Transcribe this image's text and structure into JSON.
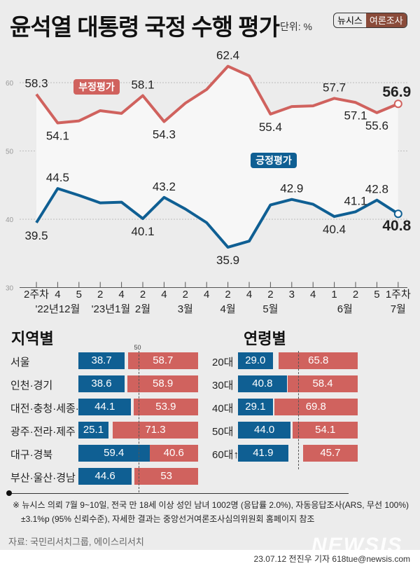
{
  "header": {
    "title": "윤석열 대통령 국정 수행 평가",
    "unit": "단위: %",
    "badge_left": "뉴시스",
    "badge_right": "여론조사"
  },
  "chart_data": [
    {
      "type": "line",
      "ylim": [
        30,
        65
      ],
      "yticks": [
        "30",
        "40",
        "50",
        "60"
      ],
      "grid": true,
      "x_top": [
        "2주차",
        "4",
        "5",
        "2",
        "4",
        "2",
        "4",
        "2",
        "4",
        "2",
        "4",
        "2",
        "3",
        "4",
        "1",
        "2",
        "5",
        "1주차"
      ],
      "x_bottom": [
        {
          "label": "'22년12월",
          "at": 1
        },
        {
          "label": "'23년1월",
          "at": 3.5
        },
        {
          "label": "2월",
          "at": 5
        },
        {
          "label": "3월",
          "at": 7
        },
        {
          "label": "4월",
          "at": 9
        },
        {
          "label": "5월",
          "at": 11
        },
        {
          "label": "6월",
          "at": 14.5
        },
        {
          "label": "7월",
          "at": 17
        }
      ],
      "series": [
        {
          "name": "부정평가",
          "color": "#d0625e",
          "values": [
            58.3,
            54.1,
            54.4,
            55.9,
            55.5,
            58.1,
            54.3,
            57.0,
            59.0,
            62.4,
            61.0,
            55.4,
            56.5,
            56.6,
            57.7,
            57.1,
            55.6,
            56.9
          ],
          "labels": [
            "58.3",
            "54.1",
            "",
            "",
            "",
            "58.1",
            "54.3",
            "",
            "",
            "62.4",
            "",
            "55.4",
            "",
            "",
            "57.7",
            "57.1",
            "55.6",
            "56.9"
          ]
        },
        {
          "name": "긍정평가",
          "color": "#0f5f93",
          "values": [
            39.5,
            44.5,
            43.5,
            42.4,
            42.5,
            40.1,
            43.2,
            41.5,
            39.5,
            35.9,
            36.8,
            42.1,
            42.9,
            42.2,
            40.4,
            41.1,
            42.8,
            40.8
          ],
          "labels": [
            "39.5",
            "44.5",
            "",
            "",
            "",
            "40.1",
            "43.2",
            "",
            "",
            "35.9",
            "",
            "",
            "42.9",
            "",
            "40.4",
            "41.1",
            "42.8",
            "40.8"
          ]
        }
      ]
    },
    {
      "type": "bar",
      "title": "지역별",
      "reference": "50",
      "categories": [
        "서울",
        "인천·경기",
        "대전·충청·세종·강원",
        "광주·전라·제주",
        "대구·경북",
        "부산·울산·경남"
      ],
      "series": [
        {
          "name": "긍정",
          "color": "#0f5f93",
          "values": [
            "38.7",
            "38.6",
            "44.1",
            "25.1",
            "59.4",
            "44.6"
          ]
        },
        {
          "name": "부정",
          "color": "#d0625e",
          "values": [
            "58.7",
            "58.9",
            "53.9",
            "71.3",
            "40.6",
            "53"
          ]
        }
      ]
    },
    {
      "type": "bar",
      "title": "연령별",
      "categories": [
        "20대",
        "30대",
        "40대",
        "50대",
        "60대↑"
      ],
      "series": [
        {
          "name": "긍정",
          "color": "#0f5f93",
          "values": [
            "29.0",
            "40.8",
            "29.1",
            "44.0",
            "41.9"
          ]
        },
        {
          "name": "부정",
          "color": "#d0625e",
          "values": [
            "65.8",
            "58.4",
            "69.8",
            "54.1",
            "45.7"
          ]
        }
      ]
    }
  ],
  "footer": {
    "note1": "※  뉴시스 의뢰 7월 9~10일, 전국 만 18세 이상 성인 남녀 1002명 (응답률 2.0%), 자동응답조사(ARS, 무선 100%)",
    "note2": "±3.1%p (95% 신뢰수준), 자세한 결과는 중앙선거여론조사심의위원회 홈페이지 참조",
    "source": "자료: 국민리서치그룹, 에이스리서치",
    "credit": "23.07.12 전진우 기자 618tue@newsis.com",
    "logo": "NEWSIS"
  }
}
